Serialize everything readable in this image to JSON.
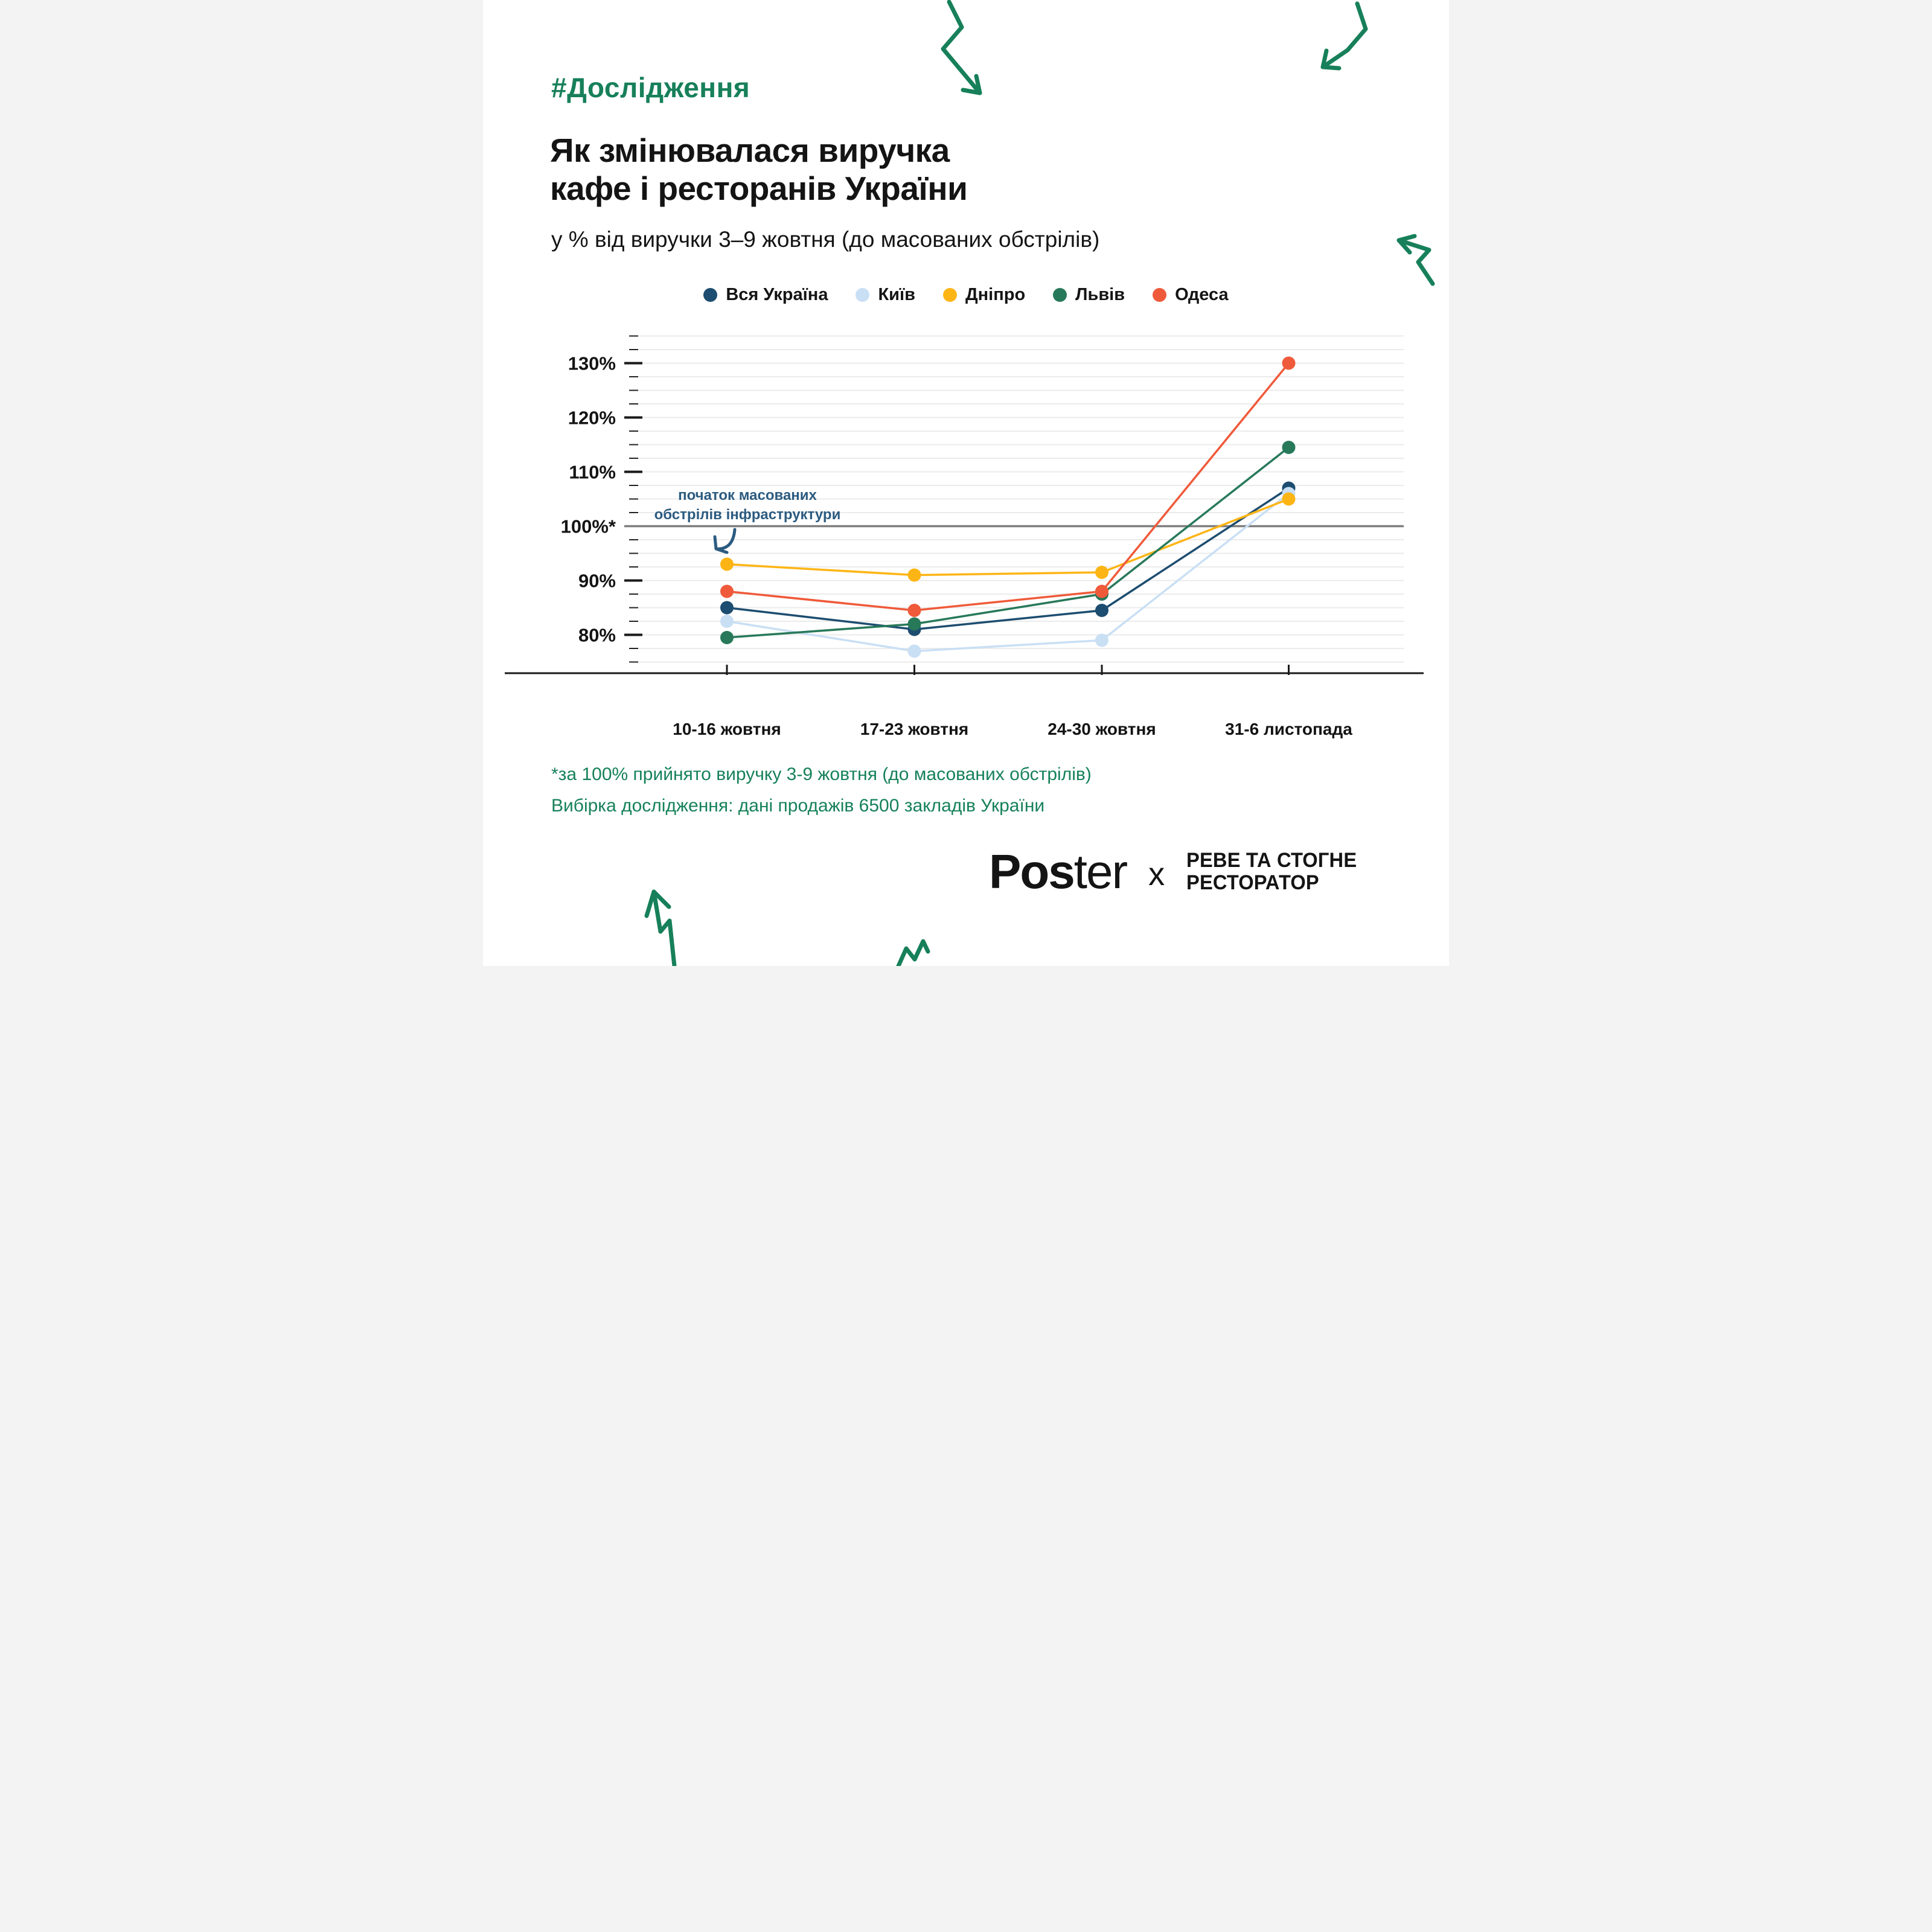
{
  "page": {
    "hashtag": "#Дослідження",
    "title_line1": "Як змінювалася виручка",
    "title_line2": "кафе і ресторанів України",
    "subtitle": "у % від виручки 3–9 жовтня (до масованих обстрілів)"
  },
  "chart_data": {
    "type": "line",
    "title": "Як змінювалася виручка кафе і ресторанів України",
    "subtitle": "у % від виручки 3–9 жовтня (до масованих обстрілів)",
    "categories": [
      "10-16 жовтня",
      "17-23 жовтня",
      "24-30 жовтня",
      "31-6 листопада"
    ],
    "series": [
      {
        "name": "Вся Україна",
        "color": "#1D4D70",
        "values": [
          85,
          81,
          84.5,
          107
        ]
      },
      {
        "name": "Київ",
        "color": "#C9DFF4",
        "values": [
          82.5,
          77,
          79,
          106
        ]
      },
      {
        "name": "Дніпро",
        "color": "#FDB515",
        "values": [
          93,
          91,
          91.5,
          105
        ]
      },
      {
        "name": "Львів",
        "color": "#27795A",
        "values": [
          79.5,
          82,
          87.5,
          114.5
        ]
      },
      {
        "name": "Одеса",
        "color": "#EF5A3A",
        "values": [
          88,
          84.5,
          88,
          130
        ]
      }
    ],
    "y_axis": {
      "major_ticks": [
        130,
        120,
        110,
        100,
        90,
        80
      ],
      "tick_labels": [
        "130%",
        "120%",
        "110%",
        "100%*",
        "90%",
        "80%"
      ],
      "minor_step": 2.5,
      "range": [
        75,
        135
      ],
      "baseline": 100
    },
    "grid": "horizontal minor gridlines every 2.5%, solid gray line at 100%",
    "legend_position": "top",
    "annotation": {
      "text_line1": "початок масованих",
      "text_line2": "обстрілів інфраструктури",
      "points_to": "Дніпро, 10-16 жовтня"
    }
  },
  "footnotes": {
    "line1": "*за 100% прийнято виручку 3-9 жовтня (до масованих обстрілів)",
    "line2": "Вибірка дослідження: дані продажів 6500 закладів України"
  },
  "logo": {
    "poster_bold": "Pos",
    "poster_light": "ter",
    "x": "x",
    "partner_line1": "РЕВЕ ТА СТОГНЕ",
    "partner_line2": "РЕСТОРАТОР"
  },
  "colors": {
    "accent_green": "#17805A",
    "footnote_green": "#16815A",
    "annotation_blue": "#2C5B80",
    "baseline_gray": "#7E7E7E",
    "gridline_gray": "#EBEBEB",
    "text_black": "#141414"
  }
}
